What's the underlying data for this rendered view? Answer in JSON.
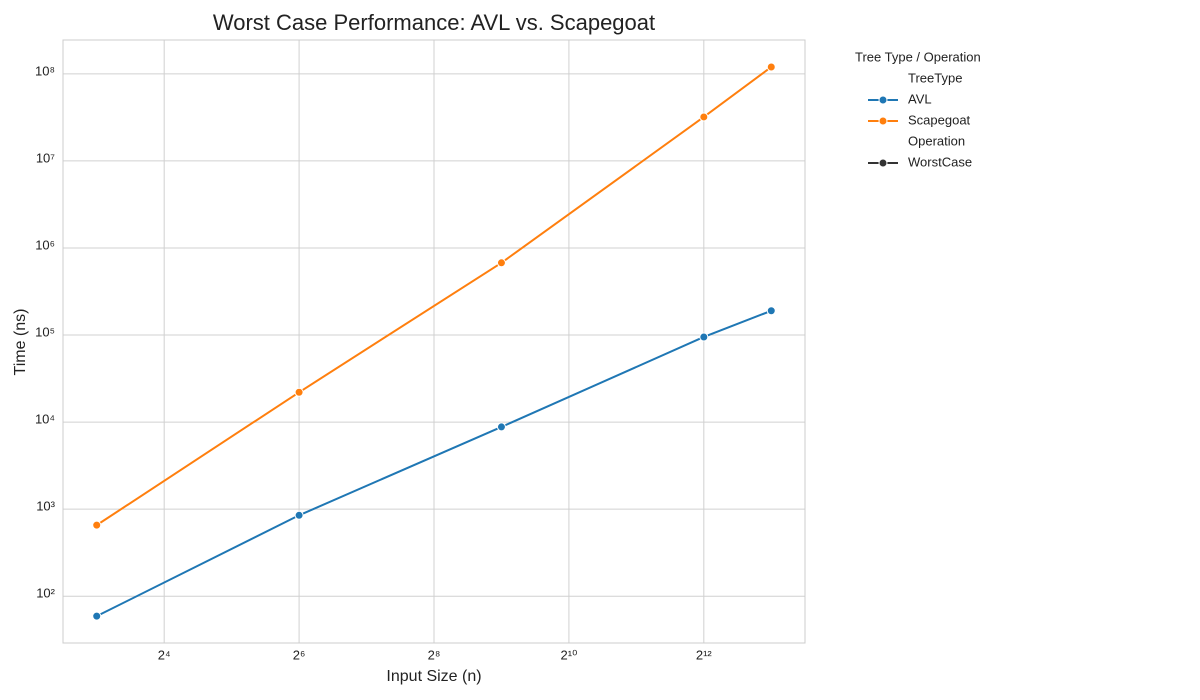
{
  "chart_data": {
    "type": "line",
    "title": "Worst Case Performance: AVL vs. Scapegoat",
    "x_label": "Input Size (n)",
    "y_label": "Time (ns)",
    "x": [
      8,
      64,
      512,
      4096,
      8192
    ],
    "series": [
      {
        "name": "AVL",
        "color": "#1f77b4",
        "values": [
          59,
          850,
          8800,
          95000,
          190000
        ]
      },
      {
        "name": "Scapegoat",
        "color": "#ff7f0e",
        "values": [
          655,
          22000,
          676000,
          32000000,
          120000000
        ]
      }
    ],
    "x_log_base": 2,
    "y_log_base": 10,
    "xlim": [
      5.657,
      11585
    ],
    "ylim": [
      29,
      245000000
    ],
    "xticks": [
      {
        "value": 16,
        "label": "2⁴"
      },
      {
        "value": 64,
        "label": "2⁶"
      },
      {
        "value": 256,
        "label": "2⁸"
      },
      {
        "value": 1024,
        "label": "2¹⁰"
      },
      {
        "value": 4096,
        "label": "2¹²"
      }
    ],
    "yticks": [
      {
        "value": 100,
        "label": "10²"
      },
      {
        "value": 1000,
        "label": "10³"
      },
      {
        "value": 10000,
        "label": "10⁴"
      },
      {
        "value": 100000,
        "label": "10⁵"
      },
      {
        "value": 1000000,
        "label": "10⁶"
      },
      {
        "value": 10000000,
        "label": "10⁷"
      },
      {
        "value": 100000000,
        "label": "10⁸"
      }
    ],
    "grid": true,
    "legend": {
      "title": "Tree Type / Operation",
      "hue_title": "TreeType",
      "style_title": "Operation",
      "style_entries": [
        {
          "name": "WorstCase",
          "color": "#333333"
        }
      ]
    }
  }
}
